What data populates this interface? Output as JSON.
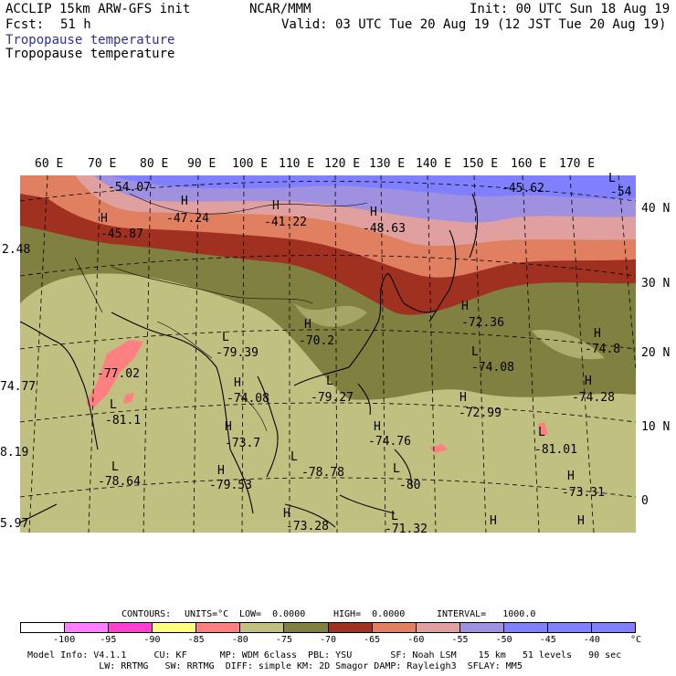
{
  "header": {
    "model": "ACCLIP 15km ARW-GFS init",
    "org": "NCAR/MMM",
    "init": "Init: 00 UTC Sun 18 Aug 19",
    "fcst_label": "Fcst:",
    "fcst_value": "51 h",
    "valid": "Valid: 03 UTC Tue 20 Aug 19 (12 JST Tue 20 Aug 19)",
    "field1": "Tropopause temperature",
    "field2": "Tropopause temperature"
  },
  "lon_ticks": [
    "60 E",
    "70 E",
    "80 E",
    "90 E",
    "100 E",
    "110 E",
    "120 E",
    "130 E",
    "140 E",
    "150 E",
    "160 E",
    "170 E"
  ],
  "lat_ticks": [
    "40 N",
    "30 N",
    "20 N",
    "10 N",
    "0"
  ],
  "map_labels": {
    "l1": "-54.07",
    "l2": "-47.24",
    "l3": "-41.22",
    "l4": "-48.63",
    "l5": "-45.62",
    "l6": "-54",
    "l7": "-45.87",
    "l8": "2.48",
    "l9": "-79.39",
    "l10": "-70.2",
    "l11": "-72.36",
    "l12": "-74.8",
    "l13": "-77.02",
    "l14": "74.77",
    "l15": "-74.08",
    "l16": "-74.08",
    "l17": "-79.27",
    "l18": "-74.28",
    "l19": "-81.1",
    "l20": "-72.99",
    "l21": "-73.7",
    "l22": "-74.76",
    "l23": "-81.01",
    "l24": "8.19",
    "l25": "-78.64",
    "l26": "-79.53",
    "l27": "-78.78",
    "l28": "-80",
    "l29": "-73.31",
    "l30": "5.97",
    "l31": "-73.28",
    "l32": "-71.32",
    "H": "H",
    "L": "L"
  },
  "contour_line": {
    "contours": "CONTOURS:",
    "units": "UNITS=°C",
    "low": "LOW=  0.0000",
    "high": "HIGH=  0.0000",
    "interval": "INTERVAL=   1000.0"
  },
  "colorbar": {
    "colors": [
      "#ffffff",
      "#ff80ff",
      "#ff40d0",
      "#ffff80",
      "#ff8080",
      "#c0c080",
      "#808040",
      "#a03020",
      "#e08060",
      "#e0a0a0",
      "#a090e0",
      "#8080ff",
      "#8080ff",
      "#8080ff"
    ],
    "ticks": [
      "-100",
      "-95",
      "-90",
      "-85",
      "-80",
      "-75",
      "-70",
      "-65",
      "-60",
      "-55",
      "-50",
      "-45",
      "-40",
      "°C"
    ]
  },
  "footer": {
    "line1": "Model Info: V4.1.1     CU: KF      MP: WDM 6class  PBL: YSU       SF: Noah LSM    15 km   51 levels   90 sec",
    "line2": "             LW: RRTMG   SW: RRTMG  DIFF: simple KM: 2D Smagor DAMP: Rayleigh3  SFLAY: MM5"
  }
}
